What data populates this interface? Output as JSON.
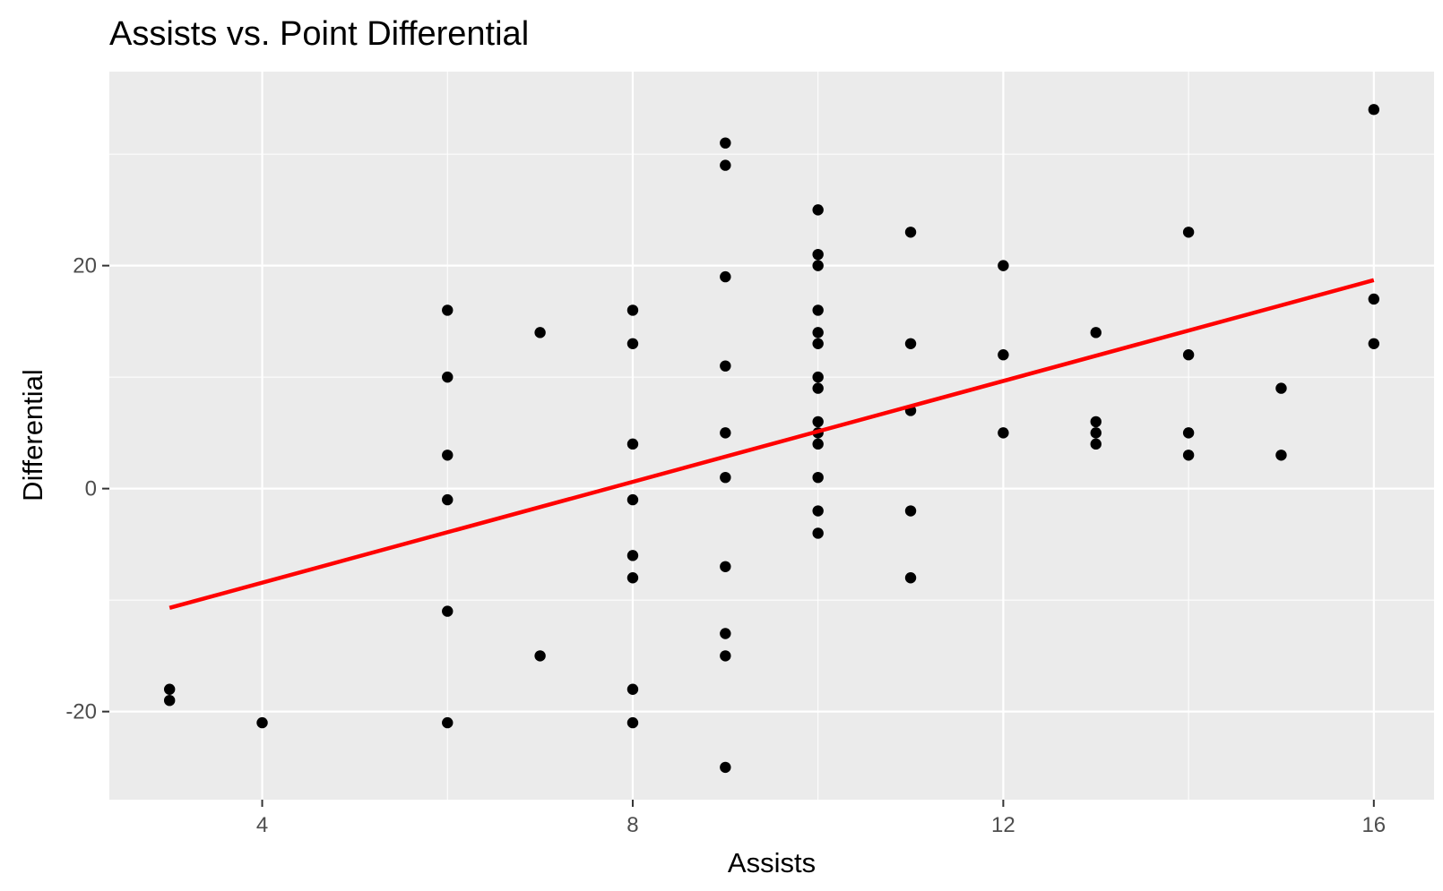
{
  "chart_data": {
    "type": "scatter",
    "title": "Assists vs. Point Differential",
    "xlabel": "Assists",
    "ylabel": "Differential",
    "xlim": [
      2.35,
      16.65
    ],
    "ylim": [
      -27.9,
      37.4
    ],
    "x_ticks": [
      4,
      8,
      12,
      16
    ],
    "x_tick_labels": [
      "4",
      "8",
      "12",
      "16"
    ],
    "y_ticks": [
      -20,
      0,
      20
    ],
    "y_tick_labels": [
      "-20",
      "0",
      "20"
    ],
    "grid": true,
    "legend": "none",
    "colors": {
      "panel": "#ebebeb",
      "grid": "#ffffff",
      "points": "#000000",
      "trend": "#ff0000"
    },
    "points": [
      {
        "x": 3,
        "y": -18
      },
      {
        "x": 3,
        "y": -19
      },
      {
        "x": 4,
        "y": -21
      },
      {
        "x": 6,
        "y": 16
      },
      {
        "x": 6,
        "y": 10
      },
      {
        "x": 6,
        "y": 3
      },
      {
        "x": 6,
        "y": -1
      },
      {
        "x": 6,
        "y": -11
      },
      {
        "x": 6,
        "y": -21
      },
      {
        "x": 7,
        "y": 14
      },
      {
        "x": 7,
        "y": -15
      },
      {
        "x": 8,
        "y": 16
      },
      {
        "x": 8,
        "y": 13
      },
      {
        "x": 8,
        "y": 4
      },
      {
        "x": 8,
        "y": -1
      },
      {
        "x": 8,
        "y": -6
      },
      {
        "x": 8,
        "y": -8
      },
      {
        "x": 8,
        "y": -18
      },
      {
        "x": 8,
        "y": -21
      },
      {
        "x": 9,
        "y": 31
      },
      {
        "x": 9,
        "y": 29
      },
      {
        "x": 9,
        "y": 19
      },
      {
        "x": 9,
        "y": 11
      },
      {
        "x": 9,
        "y": 5
      },
      {
        "x": 9,
        "y": 1
      },
      {
        "x": 9,
        "y": -7
      },
      {
        "x": 9,
        "y": -13
      },
      {
        "x": 9,
        "y": -15
      },
      {
        "x": 9,
        "y": -25
      },
      {
        "x": 10,
        "y": 25
      },
      {
        "x": 10,
        "y": 21
      },
      {
        "x": 10,
        "y": 20
      },
      {
        "x": 10,
        "y": 16
      },
      {
        "x": 10,
        "y": 14
      },
      {
        "x": 10,
        "y": 13
      },
      {
        "x": 10,
        "y": 10
      },
      {
        "x": 10,
        "y": 9
      },
      {
        "x": 10,
        "y": 6
      },
      {
        "x": 10,
        "y": 5
      },
      {
        "x": 10,
        "y": 4
      },
      {
        "x": 10,
        "y": 1
      },
      {
        "x": 10,
        "y": -2
      },
      {
        "x": 10,
        "y": -4
      },
      {
        "x": 11,
        "y": 23
      },
      {
        "x": 11,
        "y": 13
      },
      {
        "x": 11,
        "y": 7
      },
      {
        "x": 11,
        "y": -2
      },
      {
        "x": 11,
        "y": -8
      },
      {
        "x": 12,
        "y": 20
      },
      {
        "x": 12,
        "y": 12
      },
      {
        "x": 12,
        "y": 5
      },
      {
        "x": 13,
        "y": 14
      },
      {
        "x": 13,
        "y": 6
      },
      {
        "x": 13,
        "y": 5
      },
      {
        "x": 13,
        "y": 4
      },
      {
        "x": 14,
        "y": 23
      },
      {
        "x": 14,
        "y": 12
      },
      {
        "x": 14,
        "y": 5
      },
      {
        "x": 14,
        "y": 3
      },
      {
        "x": 15,
        "y": 9
      },
      {
        "x": 15,
        "y": 3
      },
      {
        "x": 16,
        "y": 34
      },
      {
        "x": 16,
        "y": 17
      },
      {
        "x": 16,
        "y": 13
      }
    ],
    "trend_line": {
      "x": [
        3,
        16
      ],
      "y": [
        -10.7,
        18.7
      ]
    }
  }
}
